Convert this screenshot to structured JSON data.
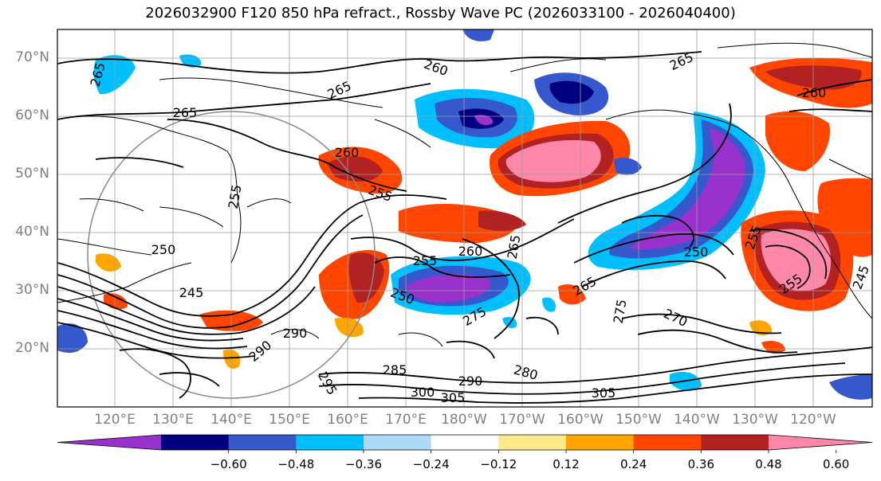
{
  "title": "2026032900 F120 850 hPa refract., Rossby Wave PC (2026033100 - 2026040400)",
  "map": {
    "lat_ticks": [
      "70°N",
      "60°N",
      "50°N",
      "40°N",
      "30°N",
      "20°N"
    ],
    "lon_ticks": [
      "120°E",
      "130°E",
      "140°E",
      "150°E",
      "160°E",
      "170°E",
      "180°W",
      "170°W",
      "160°W",
      "150°W",
      "140°W",
      "130°W",
      "120°W"
    ],
    "contour_labels": [
      "265",
      "260",
      "265",
      "265",
      "260",
      "255",
      "250",
      "245",
      "255",
      "260",
      "265",
      "250",
      "265",
      "275",
      "270",
      "285",
      "290",
      "300",
      "305",
      "280",
      "295",
      "290",
      "255",
      "250",
      "260",
      "255",
      "245",
      "255",
      "290",
      "265",
      "275",
      "305"
    ]
  },
  "colorbar": {
    "colors": [
      "#9932cc",
      "#000080",
      "#3558cc",
      "#00bfff",
      "#add8f6",
      "#ffffff",
      "#ffe98a",
      "#ffa500",
      "#ff4500",
      "#b22222",
      "#ff88aa"
    ],
    "tick_labels": [
      "−0.60",
      "−0.48",
      "−0.36",
      "−0.24",
      "−0.12",
      "0.12",
      "0.24",
      "0.36",
      "0.48",
      "0.60"
    ]
  }
}
